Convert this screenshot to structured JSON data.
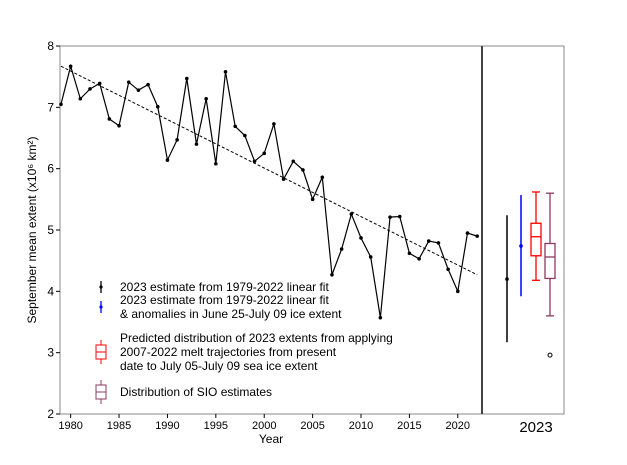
{
  "chart_data": [
    {
      "type": "line",
      "xlabel": "Year",
      "ylabel": "September mean extent (x10⁶ km²)",
      "xlim": [
        1979,
        2022
      ],
      "ylim": [
        2,
        8
      ],
      "xticks": [
        1980,
        1985,
        1990,
        1995,
        2000,
        2005,
        2010,
        2015,
        2020
      ],
      "yticks": [
        2,
        3,
        4,
        5,
        6,
        7,
        8
      ],
      "grid": false,
      "x": [
        1979,
        1980,
        1981,
        1982,
        1983,
        1984,
        1985,
        1986,
        1987,
        1988,
        1989,
        1990,
        1991,
        1992,
        1993,
        1994,
        1995,
        1996,
        1997,
        1998,
        1999,
        2000,
        2001,
        2002,
        2003,
        2004,
        2005,
        2006,
        2007,
        2008,
        2009,
        2010,
        2011,
        2012,
        2013,
        2014,
        2015,
        2016,
        2017,
        2018,
        2019,
        2020,
        2021,
        2022
      ],
      "series": [
        {
          "values": [
            7.05,
            7.67,
            7.14,
            7.3,
            7.39,
            6.81,
            6.7,
            7.41,
            7.28,
            7.37,
            7.01,
            6.14,
            6.47,
            7.47,
            6.4,
            7.14,
            6.08,
            7.58,
            6.69,
            6.54,
            6.12,
            6.25,
            6.73,
            5.83,
            6.12,
            5.98,
            5.5,
            5.86,
            4.27,
            4.69,
            5.26,
            4.87,
            4.56,
            3.57,
            5.21,
            5.22,
            4.62,
            4.53,
            4.82,
            4.79,
            4.36,
            4.0,
            4.95,
            4.9
          ],
          "color": "#000000"
        }
      ],
      "trend_line": {
        "x": [
          1979,
          2022
        ],
        "y": [
          7.67,
          4.27
        ],
        "style": "dashed"
      },
      "legend": {
        "placement": "lower-left",
        "entries": [
          "2023 estimate from 1979-2022 linear fit",
          "2023 estimate from 1979-2022 linear fit\n& anomalies in June 25-July 09 ice extent",
          "Predicted distribution of 2023 extents from applying\n2007-2022 melt trajectories from present\ndate to July 05-July 09 sea ice extent",
          "Distribution of SIO estimates"
        ]
      }
    },
    {
      "type": "box",
      "xlabel": "2023",
      "ylim": [
        2,
        8
      ],
      "items": [
        {
          "kind": "errorbar",
          "value": 4.2,
          "low": 3.17,
          "high": 5.24,
          "color": "#000000"
        },
        {
          "kind": "errorbar",
          "value": 4.74,
          "low": 3.92,
          "high": 5.57,
          "color": "#0000ff"
        },
        {
          "kind": "box",
          "whisker_low": 4.18,
          "q1": 4.58,
          "median": 4.89,
          "q3": 5.11,
          "whisker_high": 5.62,
          "color": "#ff0000"
        },
        {
          "kind": "box",
          "whisker_low": 3.6,
          "q1": 4.21,
          "median": 4.56,
          "q3": 4.78,
          "whisker_high": 5.6,
          "outliers": [
            2.96
          ],
          "color": "#8b3a62"
        }
      ]
    }
  ]
}
